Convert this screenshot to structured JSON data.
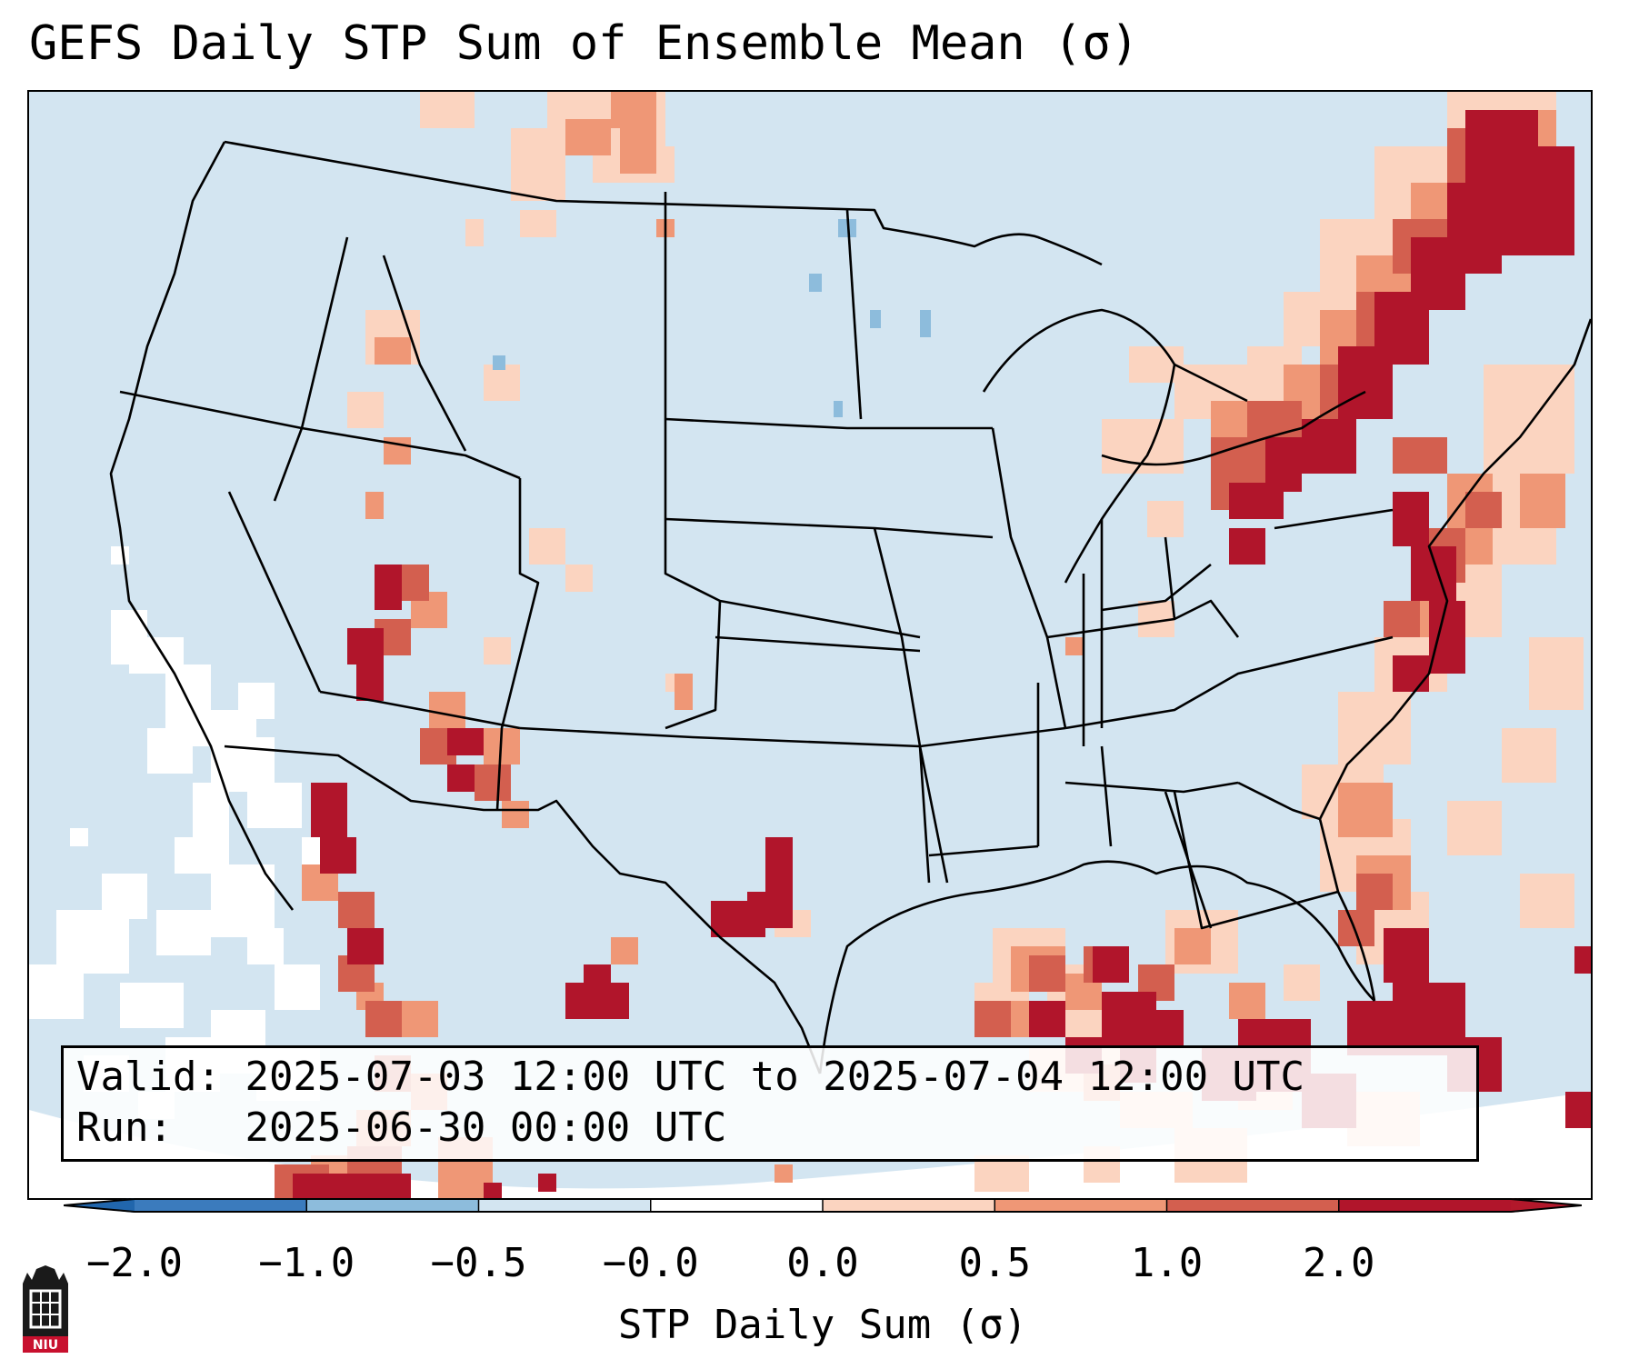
{
  "title": "GEFS Daily STP Sum of Ensemble Mean (σ)",
  "info": {
    "valid_label": "Valid:",
    "valid_value": "2025-07-03 12:00 UTC to 2025-07-04 12:00 UTC",
    "run_label": "Run:",
    "run_value": "2025-06-30 00:00 UTC"
  },
  "colorbar": {
    "label": "STP Daily Sum (σ)",
    "ticks": [
      "−2.0",
      "−1.0",
      "−0.5",
      "−0.0",
      "0.0",
      "0.5",
      "1.0",
      "2.0"
    ],
    "colors": [
      "#3b7bbd",
      "#8dbcdc",
      "#d3e5f1",
      "#ffffff",
      "#fbd4c0",
      "#ef9776",
      "#d35f4f",
      "#b1152b"
    ],
    "extend_min_color": "#2166ac",
    "extend_max_color": "#b2182b"
  },
  "map": {
    "background_color": "#d3e5f1",
    "projection": "Lambert conformal, CONUS"
  },
  "logo": {
    "text": "NIU"
  }
}
